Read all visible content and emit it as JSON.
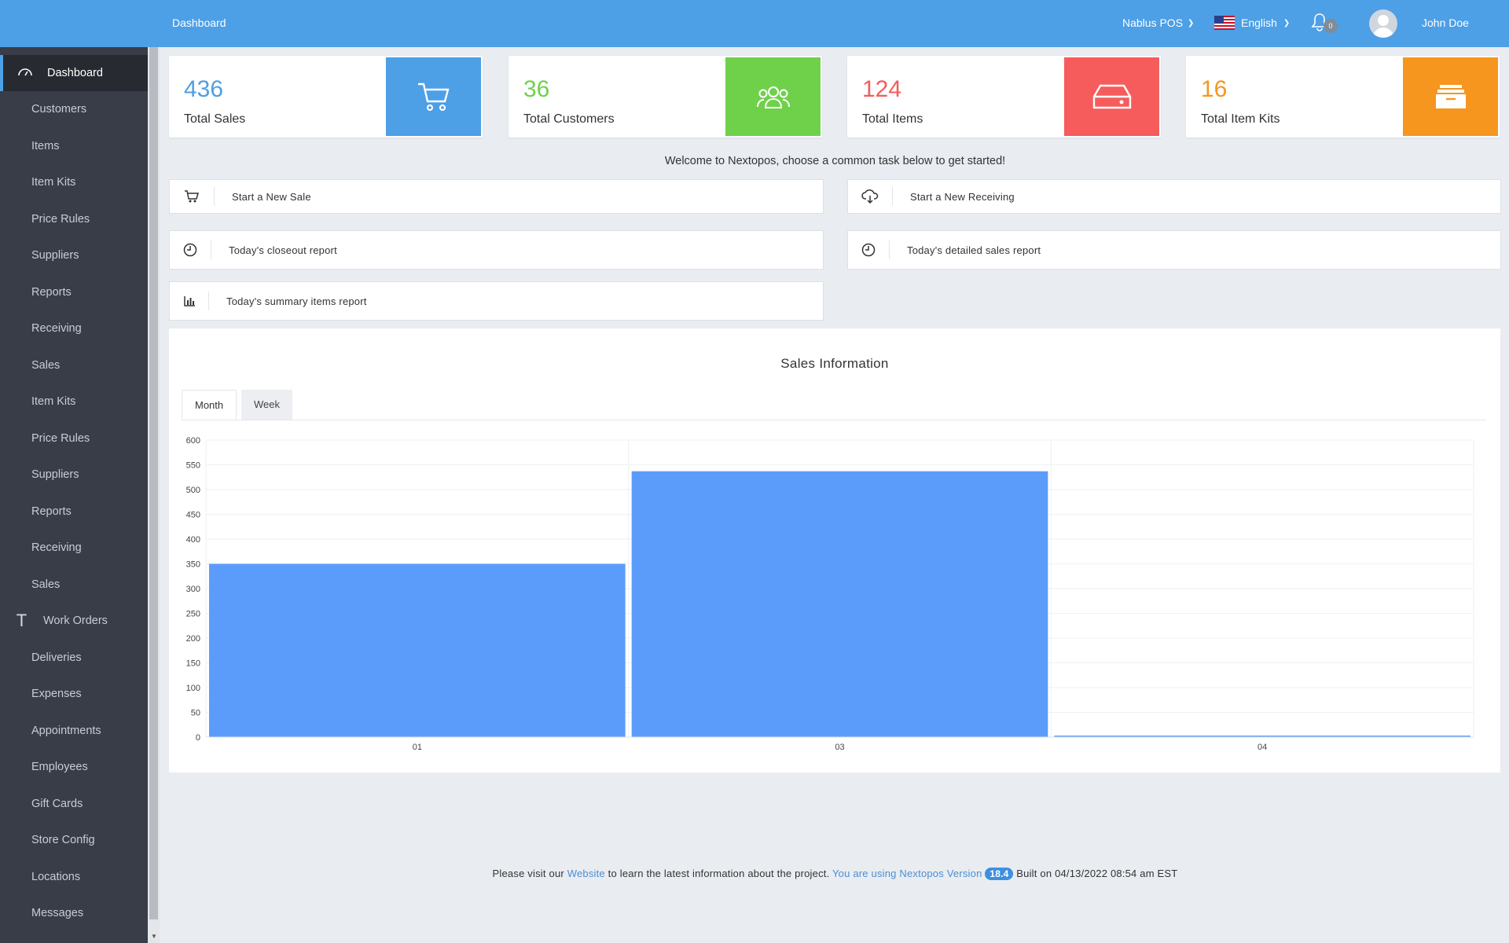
{
  "topbar": {
    "breadcrumb": "Dashboard",
    "store": "Nablus POS",
    "language": "English",
    "notification_count": "0",
    "user_name": "John Doe"
  },
  "sidebar": {
    "active": "Dashboard",
    "items": [
      "Customers",
      "Items",
      "Item Kits",
      "Price Rules",
      "Suppliers",
      "Reports",
      "Receiving",
      "Sales",
      "Item Kits",
      "Price Rules",
      "Suppliers",
      "Reports",
      "Receiving",
      "Sales",
      "Work Orders",
      "Deliveries",
      "Expenses",
      "Appointments",
      "Employees",
      "Gift Cards",
      "Store Config",
      "Locations",
      "Messages"
    ]
  },
  "stats": [
    {
      "value": "436",
      "label": "Total Sales",
      "color": "#4d9fe6",
      "icon": "cart-icon"
    },
    {
      "value": "36",
      "label": "Total Customers",
      "color": "#6fd14a",
      "icon": "users-icon"
    },
    {
      "value": "124",
      "label": "Total Items",
      "color": "#f65c5c",
      "icon": "hdd-icon"
    },
    {
      "value": "16",
      "label": "Total Item Kits",
      "color": "#f6961e",
      "icon": "inbox-icon"
    }
  ],
  "welcome": "Welcome to Nextopos, choose a common task below to get started!",
  "tasks": {
    "new_sale": "Start a New Sale",
    "new_receiving": "Start a New Receiving",
    "closeout": "Today's closeout report",
    "detailed_sales": "Today's detailed sales report",
    "summary_items": "Today's summary items report"
  },
  "sales_panel": {
    "title": "Sales Information",
    "tab_month": "Month",
    "tab_week": "Week"
  },
  "chart_data": {
    "type": "bar",
    "categories": [
      "01",
      "03",
      "04"
    ],
    "values": [
      350,
      537,
      3
    ],
    "ylim": [
      0,
      600
    ],
    "yticks": [
      0,
      50,
      100,
      150,
      200,
      250,
      300,
      350,
      400,
      450,
      500,
      550,
      600
    ],
    "bar_color": "#5b9cfb",
    "grid": true,
    "title": "",
    "xlabel": "",
    "ylabel": ""
  },
  "footer": {
    "pre": "Please visit our",
    "website": "Website",
    "mid": "to learn the latest information about the project.",
    "using": "You are using Nextopos Version",
    "version": "18.4",
    "built": "Built on 04/13/2022 08:54 am EST"
  }
}
